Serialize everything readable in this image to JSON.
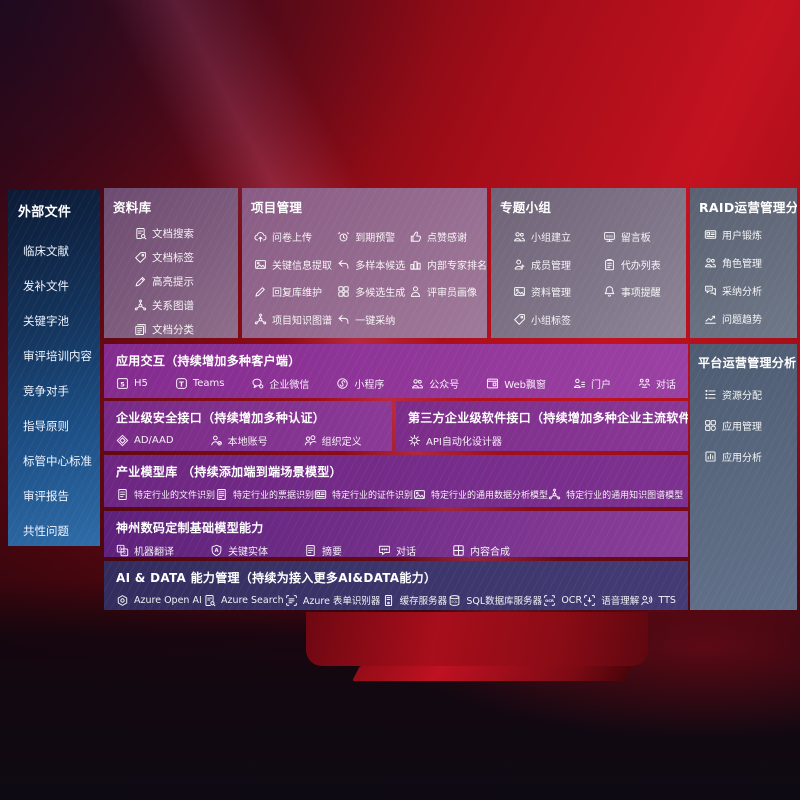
{
  "colors": {
    "background_red": "#b50d1b",
    "streak_pink": "#e0567c",
    "sidebar_blue_top": "#0c1b36",
    "sidebar_blue_bottom": "#2f6ca8",
    "panel_mauve": "#6d4a70",
    "panel_slate": "#5a6172",
    "row_purple": "#842b8f",
    "row_indigo": "#332d5e"
  },
  "sidebar": {
    "title": "外部文件",
    "items": [
      {
        "label": "临床文献"
      },
      {
        "label": "发补文件"
      },
      {
        "label": "关键字池"
      },
      {
        "label": "审评培训内容"
      },
      {
        "label": "竞争对手"
      },
      {
        "label": "指导原则"
      },
      {
        "label": "标管中心标准"
      },
      {
        "label": "审评报告"
      },
      {
        "label": "共性问题"
      }
    ]
  },
  "library": {
    "title": "资料库",
    "items": [
      {
        "label": "文档搜索",
        "icon": "doc-search"
      },
      {
        "label": "文档标签",
        "icon": "doc-tag"
      },
      {
        "label": "高亮提示",
        "icon": "highlight-pen"
      },
      {
        "label": "关系图谱",
        "icon": "relation-graph"
      },
      {
        "label": "文档分类",
        "icon": "doc-classify"
      }
    ]
  },
  "project": {
    "title": "项目管理",
    "items": [
      {
        "label": "问卷上传",
        "icon": "cloud-upload"
      },
      {
        "label": "到期预警",
        "icon": "alarm-warning"
      },
      {
        "label": "点赞感谢",
        "icon": "thumbs-up"
      },
      {
        "label": "关键信息提取",
        "icon": "key-info-image"
      },
      {
        "label": "多样本候选",
        "icon": "multi-sample-reply"
      },
      {
        "label": "内部专家排名",
        "icon": "expert-ranking"
      },
      {
        "label": "回复库维护",
        "icon": "edit-pencil"
      },
      {
        "label": "多候选生成",
        "icon": "multi-generate-grid"
      },
      {
        "label": "评审员画像",
        "icon": "reviewer-person"
      },
      {
        "label": "项目知识图谱",
        "icon": "knowledge-graph"
      },
      {
        "label": "一键采纳",
        "icon": "adopt-arrow"
      }
    ]
  },
  "group": {
    "title": "专题小组",
    "items": [
      {
        "label": "小组建立",
        "icon": "team-people"
      },
      {
        "label": "留言板",
        "icon": "message-board"
      },
      {
        "label": "成员管理",
        "icon": "member-person"
      },
      {
        "label": "代办列表",
        "icon": "todo-clipboard"
      },
      {
        "label": "资料管理",
        "icon": "photo-album"
      },
      {
        "label": "事项提醒",
        "icon": "reminder-bell"
      },
      {
        "label": "小组标签",
        "icon": "group-tag"
      }
    ]
  },
  "raid": {
    "title": "RAID运营管理分析",
    "items": [
      {
        "label": "用户锻炼",
        "icon": "user-card"
      },
      {
        "label": "角色管理",
        "icon": "role-people"
      },
      {
        "label": "采纳分析",
        "icon": "adoption-chat"
      },
      {
        "label": "问题趋势",
        "icon": "issue-trend"
      }
    ]
  },
  "platform": {
    "title": "平台运营管理分析",
    "items": [
      {
        "label": "资源分配",
        "icon": "resource-list"
      },
      {
        "label": "应用管理",
        "icon": "app-grid"
      },
      {
        "label": "应用分析",
        "icon": "app-analysis"
      }
    ]
  },
  "interaction": {
    "title": "应用交互（持续增加多种客户端）",
    "items": [
      {
        "label": "H5",
        "icon": "h5"
      },
      {
        "label": "Teams",
        "icon": "teams"
      },
      {
        "label": "企业微信",
        "icon": "wechat-work"
      },
      {
        "label": "小程序",
        "icon": "mini-program"
      },
      {
        "label": "公众号",
        "icon": "official-account"
      },
      {
        "label": "Web飘窗",
        "icon": "web-window"
      },
      {
        "label": "门户",
        "icon": "portal-person"
      },
      {
        "label": "对话",
        "icon": "dialog-people"
      }
    ]
  },
  "security": {
    "title": "企业级安全接口（持续增加多种认证）",
    "items": [
      {
        "label": "AD/AAD",
        "icon": "ad-aad-diamond"
      },
      {
        "label": "本地账号",
        "icon": "local-account"
      },
      {
        "label": "组织定义",
        "icon": "org-define"
      }
    ]
  },
  "thirdparty": {
    "title": "第三方企业级软件接口（持续增加多种企业主流软件接口）",
    "items": [
      {
        "label": "API自动化设计器",
        "icon": "api-gear"
      }
    ]
  },
  "models": {
    "title": "产业模型库 （持续添加端到端场景模型）",
    "items": [
      {
        "label": "特定行业的文件识别",
        "icon": "file-doc"
      },
      {
        "label": "特定行业的票据识别",
        "icon": "receipt-doc"
      },
      {
        "label": "特定行业的证件识别",
        "icon": "cert-card"
      },
      {
        "label": "特定行业的通用数据分析模型",
        "icon": "data-image"
      },
      {
        "label": "特定行业的通用知识图谱模型",
        "icon": "knowledge-network"
      }
    ]
  },
  "foundation": {
    "title": "神州数码定制基础模型能力",
    "items": [
      {
        "label": "机器翻译",
        "icon": "translate"
      },
      {
        "label": "关键实体",
        "icon": "key-entity-shield"
      },
      {
        "label": "摘要",
        "icon": "summary-doc"
      },
      {
        "label": "对话",
        "icon": "dialog-chat"
      },
      {
        "label": "内容合成",
        "icon": "content-grid"
      }
    ]
  },
  "aidata": {
    "title": "AI & DATA 能力管理（持续为接入更多AI&DATA能力）",
    "items": [
      {
        "label": "Azure Open AI",
        "icon": "openai"
      },
      {
        "label": "Azure Search",
        "icon": "azure-search"
      },
      {
        "label": "Azure 表单识别器",
        "icon": "form-recognizer"
      },
      {
        "label": "缓存服务器",
        "icon": "cache-server"
      },
      {
        "label": "SQL数据库服务器",
        "icon": "sql-database"
      },
      {
        "label": "OCR",
        "icon": "ocr"
      },
      {
        "label": "语音理解",
        "icon": "speech-understanding"
      },
      {
        "label": "TTS",
        "icon": "tts-voice"
      }
    ]
  }
}
